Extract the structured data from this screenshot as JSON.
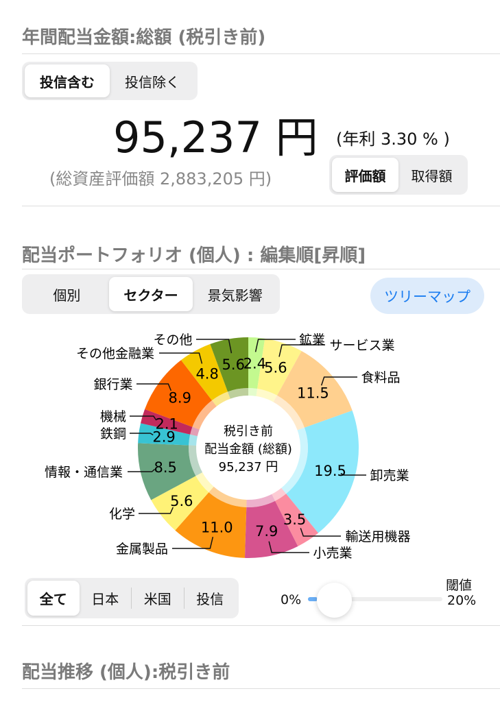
{
  "dividend_total": {
    "title": "年間配当金額:総額 (税引き前)",
    "fund_toggle": [
      {
        "label": "投信含む",
        "selected": true
      },
      {
        "label": "投信除く",
        "selected": false
      }
    ],
    "amount": "95,237 円",
    "yield": "(年利 3.30 % )",
    "total_assets": "(総資産評価額 2,883,205 円)",
    "basis_toggle": [
      {
        "label": "評価額",
        "selected": true
      },
      {
        "label": "取得額",
        "selected": false
      }
    ]
  },
  "portfolio": {
    "title": "配当ポートフォリオ (個人) : 編集順[昇順]",
    "view_toggle": [
      {
        "label": "個別",
        "selected": false
      },
      {
        "label": "セクター",
        "selected": true
      },
      {
        "label": "景気影響",
        "selected": false
      }
    ],
    "treemap_button": "ツリーマップ",
    "accent": "#1a7cf0",
    "region_toggle": [
      {
        "label": "全て",
        "selected": true
      },
      {
        "label": "日本",
        "selected": false
      },
      {
        "label": "米国",
        "selected": false
      },
      {
        "label": "投信",
        "selected": false
      }
    ],
    "threshold": {
      "label": "閾値",
      "min_label": "0%",
      "max_label": "20%",
      "value_percent": 0
    }
  },
  "chart_data": {
    "type": "pie",
    "center_label": [
      "税引き前",
      "配当金額 (総額)",
      "95,237 円"
    ],
    "categories": [
      "鉱業",
      "サービス業",
      "食料品",
      "卸売業",
      "輸送用機器",
      "小売業",
      "金属製品",
      "化学",
      "情報・通信業",
      "鉄鋼",
      "機械",
      "銀行業",
      "その他金融業",
      "その他"
    ],
    "values": [
      2.4,
      5.6,
      11.5,
      19.5,
      3.5,
      7.9,
      11.0,
      5.6,
      8.5,
      2.9,
      2.1,
      8.9,
      4.8,
      5.6
    ],
    "value_labels": [
      "2.4",
      "5.6",
      "11.5",
      "19.5",
      "3.5",
      "7.9",
      "11.0",
      "5.6",
      "8.5",
      "2.9",
      "2.1",
      "8.9",
      "4.8",
      "5.6"
    ],
    "colors": [
      "#c3f98f",
      "#fff48a",
      "#ffd08f",
      "#8de8fb",
      "#fb8ca0",
      "#d6538e",
      "#fd9611",
      "#fff277",
      "#6aa581",
      "#38c3d3",
      "#c22a5c",
      "#fd6700",
      "#f4c900",
      "#6c9523"
    ]
  },
  "trend": {
    "title": "配当推移 (個人):税引き前"
  }
}
